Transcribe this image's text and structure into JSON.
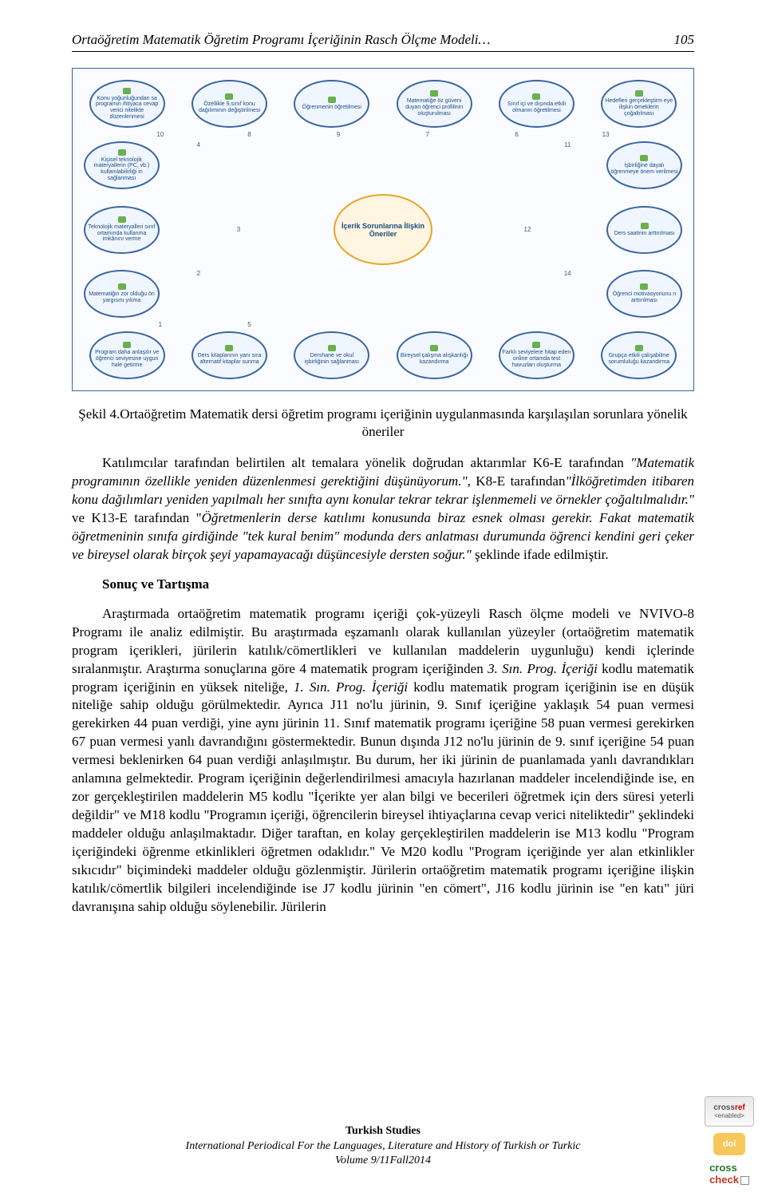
{
  "header": {
    "title": "Ortaöğretim Matematik Öğretim Programı İçeriğinin Rasch Ölçme Modeli…",
    "page_number": "105"
  },
  "diagram": {
    "center": "İçerik Sorunlarına İlişkin Öneriler",
    "top_row": [
      "Konu yoğunluğundan sa programın ihtiyaca cevap verici nitelikte düzenlenmesi",
      "Özellikle 9.sınıf konu dağılımının değiştirilmesi",
      "Öğrenmenin öğretilmesi",
      "Matematiğe öz güveni duyan öğrenci profilinin oluşturulması",
      "Sınıf içi ve dışında etkili olmanın öğretilmesi",
      "Hedefleri gerçekleştirm eye ilişkin örneklerin çoğaltılması"
    ],
    "top_numbers": [
      "10",
      "8",
      "9",
      "7",
      "6",
      "13"
    ],
    "left_col": [
      "Kişisel teknolojik materyallerin (PC, vb.) kullanılabilirliği in sağlanması",
      "Teknolojik materyalleri sınıf ortamında kullanma imkânını verme",
      "Matematiğin zor olduğu ön yargısını yıkma"
    ],
    "left_numbers": [
      "4",
      "3",
      "2"
    ],
    "right_col": [
      "İşbirliğine dayalı öğrenmeye önem verilmesi",
      "Ders saatinin arttırılması",
      "Öğrenci motivasyonunu n arttırılması"
    ],
    "right_numbers": [
      "11",
      "12",
      "14"
    ],
    "bottom_row": [
      "Program daha anlaşılır ve öğrenci seviyesine uygun hale getirme",
      "Ders kitaplarının yanı sıra alternatif kitaplar sunma",
      "Dershane ve okul işbirliğinin sağlanması",
      "Bireysel çalışma alışkanlığı kazandırma",
      "Farklı seviyelere hitap eden online ortamda test havuzları oluşturma",
      "Grupça etkili çalışabilme sorumluluğu kazandırma"
    ],
    "bottom_numbers": [
      "1",
      "5",
      "",
      "",
      "",
      ""
    ]
  },
  "caption": "Şekil 4.Ortaöğretim Matematik dersi öğretim programı içeriğinin uygulanmasında karşılaşılan sorunlara yönelik öneriler",
  "para1_a": "Katılımcılar tarafından belirtilen alt temalara yönelik doğrudan aktarımlar K6-E tarafından ",
  "para1_q1": "\"Matematik programının özellikle yeniden düzenlenmesi gerektiğini düşünüyorum.\"",
  "para1_b": ", K8-E tarafından",
  "para1_q2": "\"İlköğretimden itibaren konu dağılımları yeniden yapılmalı her sınıfta aynı konular tekrar tekrar işlenmemeli ve örnekler çoğaltılmalıdır.\"",
  "para1_c": " ve K13-E tarafından \"",
  "para1_q3": "Öğretmenlerin derse katılımı konusunda biraz esnek olması gerekir. Fakat matematik öğretmeninin sınıfa girdiğinde \"tek kural benim\" modunda ders anlatması durumunda öğrenci kendini geri çeker ve bireysel olarak birçok şeyi yapamayacağı düşüncesiyle dersten soğur.\"",
  "para1_d": " şeklinde ifade edilmiştir.",
  "sonuc_heading": "Sonuç ve Tartışma",
  "para2_a": "Araştırmada ortaöğretim matematik programı içeriği çok-yüzeyli Rasch ölçme modeli ve NVIVO-8 Programı ile analiz edilmiştir. Bu araştırmada eşzamanlı olarak kullanılan yüzeyler (ortaöğretim matematik program içerikleri, jürilerin katılık/cömertlikleri ve kullanılan maddelerin uygunluğu) kendi içlerinde sıralanmıştır. Araştırma sonuçlarına göre 4 matematik program içeriğinden ",
  "para2_i1": "3. Sın. Prog. İçeriği",
  "para2_b": " kodlu matematik program içeriğinin en yüksek niteliğe, ",
  "para2_i2": "1. Sın. Prog. İçeriği",
  "para2_c": " kodlu matematik program içeriğinin ise en düşük niteliğe sahip olduğu görülmektedir. Ayrıca J11 no'lu jürinin, 9. Sınıf içeriğine yaklaşık 54 puan vermesi gerekirken 44 puan verdiği, yine aynı jürinin 11. Sınıf matematik programı içeriğine 58 puan vermesi gerekirken 67 puan vermesi yanlı davrandığını göstermektedir. Bunun dışında J12 no'lu jürinin de 9. sınıf içeriğine 54 puan vermesi beklenirken 64 puan verdiği anlaşılmıştır. Bu durum, her iki jürinin de puanlamada yanlı davrandıkları anlamına gelmektedir. Program içeriğinin değerlendirilmesi amacıyla hazırlanan maddeler incelendiğinde ise, en zor gerçekleştirilen maddelerin M5 kodlu \"İçerikte yer alan bilgi ve becerileri öğretmek için ders süresi yeterli değildir\" ve M18 kodlu \"Programın içeriği, öğrencilerin bireysel ihtiyaçlarına cevap verici niteliktedir\" şeklindeki maddeler olduğu anlaşılmaktadır.  Diğer taraftan, en kolay gerçekleştirilen maddelerin ise M13 kodlu \"Program içeriğindeki öğrenme etkinlikleri öğretmen odaklıdır.\" Ve M20 kodlu \"Program içeriğinde yer alan etkinlikler sıkıcıdır\" biçimindeki maddeler olduğu gözlenmiştir. Jürilerin ortaöğretim matematik programı içeriğine ilişkin katılık/cömertlik bilgileri incelendiğinde ise J7 kodlu jürinin \"en cömert\", J16 kodlu jürinin ise \"en katı\" jüri davranışına sahip olduğu söylenebilir. Jürilerin",
  "footer": {
    "line1": "Turkish Studies",
    "line2": "International Periodical For the Languages, Literature and History of Turkish or Turkic",
    "line3": "Volume 9/11Fall2014"
  },
  "badges": {
    "crossref_top": "cross",
    "crossref_ref": "ref",
    "crossref_enabled": "<enabled>",
    "doi": "doi",
    "check_cross": "cross",
    "check_check": "check"
  }
}
